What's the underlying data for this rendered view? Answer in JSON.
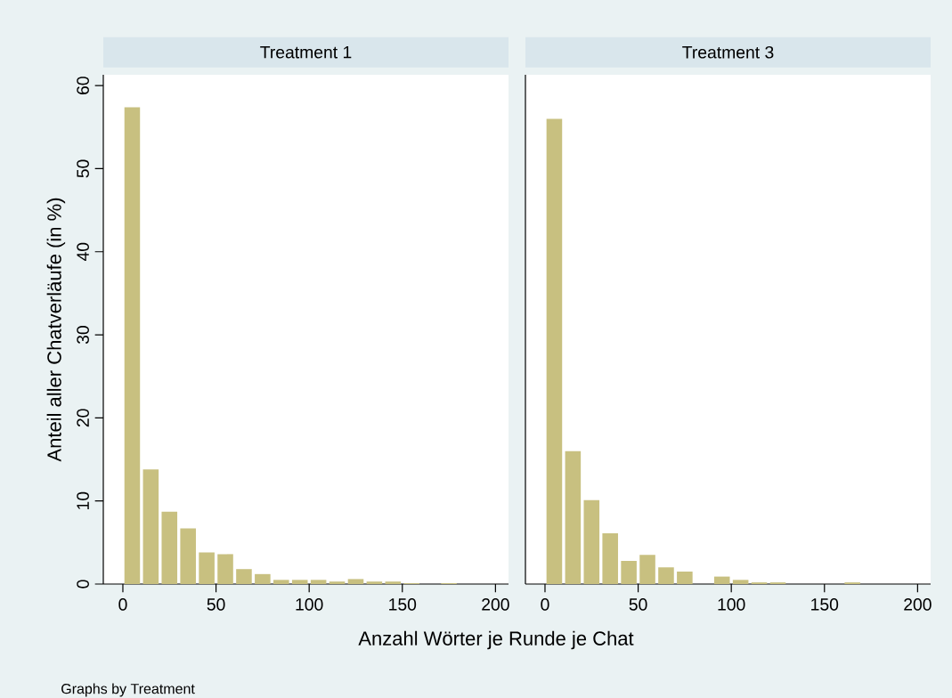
{
  "chart_data": [
    {
      "type": "histogram",
      "title": "Treatment 1",
      "xlabel": "Anzahl Wörter je Runde je Chat",
      "ylabel": "Anteil aller Chatverläufe (in %)",
      "annotations": [
        "Graphs by Treatment"
      ],
      "bins": [
        0,
        10,
        20,
        30,
        40,
        50,
        60,
        70,
        80,
        90,
        100,
        110,
        120,
        130,
        140,
        150,
        160,
        170,
        180,
        190,
        200
      ],
      "values": [
        57.4,
        13.8,
        8.7,
        6.7,
        3.8,
        3.6,
        1.8,
        1.2,
        0.5,
        0.5,
        0.5,
        0.3,
        0.6,
        0.3,
        0.3,
        0.1,
        0,
        0.1,
        0,
        0
      ],
      "color": "#c8c080",
      "xlim": [
        -10.5,
        207
      ],
      "ylim": [
        0,
        61.3
      ],
      "xticks": [
        0,
        50,
        100,
        150,
        200
      ],
      "yticks": [
        0,
        10,
        20,
        30,
        40,
        50,
        60
      ]
    },
    {
      "type": "histogram",
      "title": "Treatment 3",
      "bins": [
        0,
        10,
        20,
        30,
        40,
        50,
        60,
        70,
        80,
        90,
        100,
        110,
        120,
        130,
        140,
        150,
        160,
        170,
        180,
        190,
        200
      ],
      "values": [
        56,
        16,
        10.1,
        6.1,
        2.8,
        3.5,
        2,
        1.5,
        0,
        0.9,
        0.5,
        0.2,
        0.2,
        0,
        0,
        0,
        0.2,
        0,
        0,
        0
      ],
      "color": "#c8c080",
      "xlim": [
        -10.5,
        207
      ],
      "ylim": [
        0,
        61.3
      ],
      "xticks": [
        0,
        50,
        100,
        150,
        200
      ],
      "yticks": [
        0,
        10,
        20,
        30,
        40,
        50,
        60
      ],
      "tick_labels": "x"
    }
  ]
}
